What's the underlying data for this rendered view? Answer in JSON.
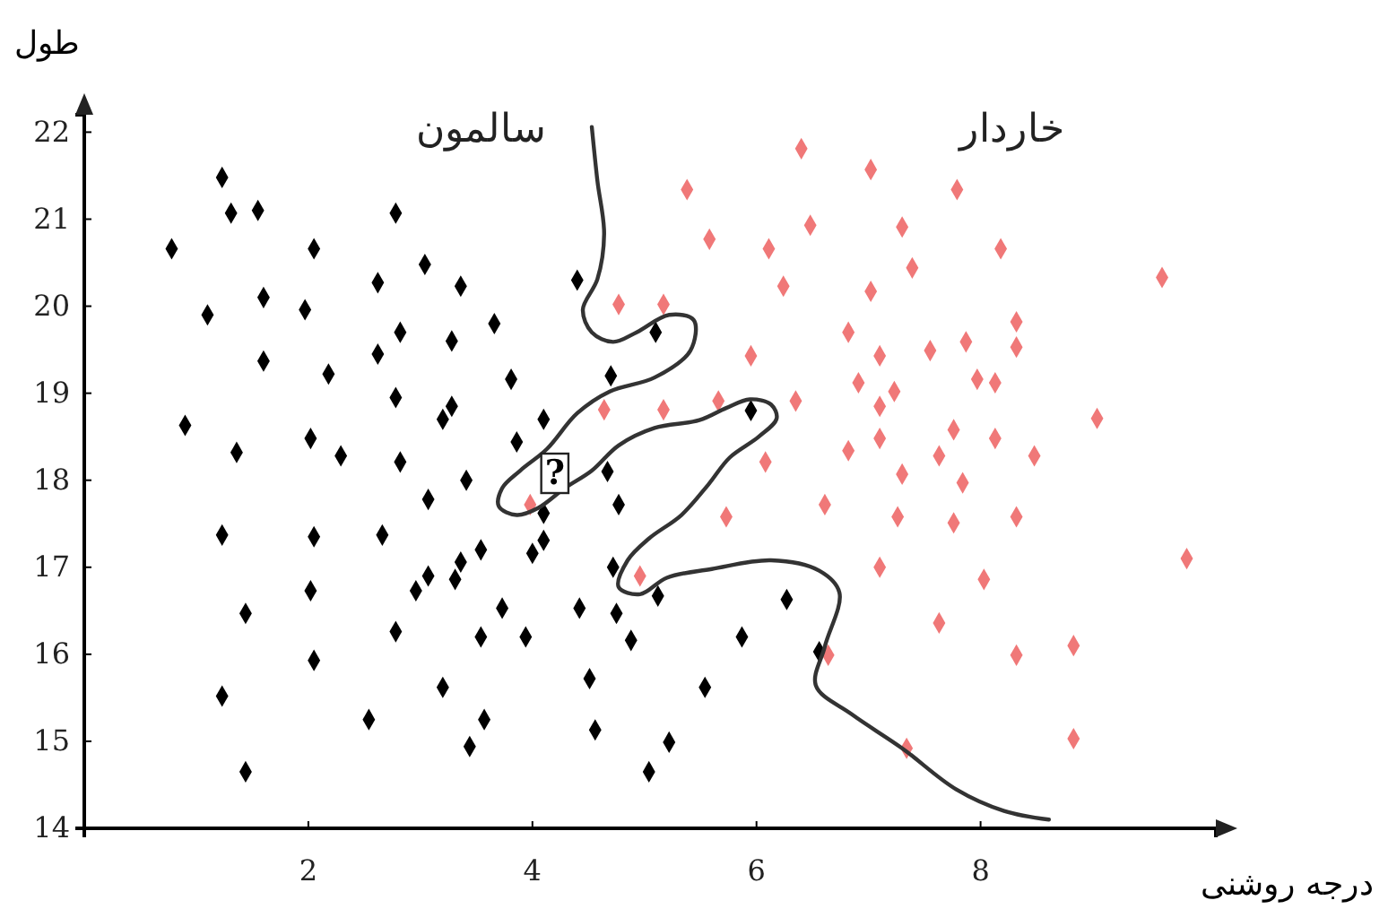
{
  "chart_data": {
    "type": "scatter",
    "xlabel": "درجه روشنی",
    "ylabel": "طول",
    "xlim": [
      0,
      10.1
    ],
    "ylim": [
      14,
      22.2
    ],
    "xticks": [
      2,
      4,
      6,
      8
    ],
    "yticks": [
      14,
      15,
      16,
      17,
      18,
      19,
      20,
      21,
      22
    ],
    "grid": false,
    "marker": "diamond",
    "annotations": [
      {
        "text": "?",
        "x": 4.2,
        "y": 18.1
      }
    ],
    "series": [
      {
        "name": "سالمون",
        "color": "#000000",
        "x": [
          1.23,
          1.31,
          1.55,
          2.78,
          0.78,
          2.05,
          3.04,
          2.62,
          3.36,
          1.1,
          1.6,
          1.97,
          2.82,
          3.28,
          3.66,
          1.6,
          2.18,
          2.62,
          3.81,
          2.78,
          3.28,
          3.2,
          0.9,
          1.36,
          2.02,
          2.29,
          2.82,
          3.86,
          3.41,
          3.07,
          1.23,
          2.05,
          2.66,
          3.54,
          3.36,
          3.07,
          3.31,
          2.96,
          2.02,
          1.44,
          3.73,
          2.78,
          3.54,
          3.94,
          4.0,
          2.05,
          3.2,
          1.23,
          2.54,
          3.57,
          3.44,
          1.44,
          4.4,
          5.1,
          4.7,
          4.1,
          5.95,
          4.67,
          4.1,
          4.77,
          4.1,
          4.72,
          5.12,
          6.27,
          4.42,
          4.75,
          4.88,
          5.87,
          6.56,
          4.51,
          5.54,
          4.56,
          5.22,
          5.04
        ],
        "values": [
          21.48,
          21.07,
          21.1,
          21.07,
          20.66,
          20.66,
          20.48,
          20.27,
          20.23,
          19.9,
          20.1,
          19.96,
          19.7,
          19.6,
          19.8,
          19.37,
          19.22,
          19.45,
          19.16,
          18.95,
          18.85,
          18.7,
          18.63,
          18.32,
          18.48,
          18.28,
          18.21,
          18.44,
          18.0,
          17.78,
          17.37,
          17.35,
          17.37,
          17.2,
          17.06,
          16.9,
          16.86,
          16.73,
          16.73,
          16.47,
          16.53,
          16.26,
          16.2,
          16.2,
          17.16,
          15.93,
          15.62,
          15.52,
          15.25,
          15.25,
          14.94,
          14.65,
          20.3,
          19.7,
          19.2,
          18.7,
          18.8,
          18.1,
          17.62,
          17.72,
          17.31,
          17.0,
          16.67,
          16.63,
          16.53,
          16.47,
          16.16,
          16.2,
          16.03,
          15.72,
          15.62,
          15.13,
          14.99,
          14.65
        ]
      },
      {
        "name": "خاردار",
        "color": "#f07878",
        "x": [
          6.4,
          5.38,
          6.48,
          5.58,
          6.11,
          6.24,
          4.77,
          5.17,
          6.82,
          5.95,
          6.91,
          4.64,
          5.17,
          5.66,
          6.35,
          6.82,
          6.08,
          3.98,
          5.73,
          6.61,
          4.96,
          6.64,
          7.02,
          7.79,
          7.3,
          8.18,
          7.39,
          7.02,
          9.62,
          8.32,
          8.32,
          7.1,
          7.55,
          7.87,
          7.23,
          7.97,
          8.13,
          7.1,
          9.04,
          7.76,
          7.1,
          8.13,
          7.63,
          8.48,
          7.3,
          7.84,
          7.26,
          7.76,
          8.32,
          9.84,
          7.1,
          8.03,
          7.63,
          8.32,
          8.83,
          7.34,
          8.83
        ],
        "values": [
          21.81,
          21.34,
          20.93,
          20.77,
          20.66,
          20.23,
          20.02,
          20.02,
          19.7,
          19.43,
          19.12,
          18.81,
          18.81,
          18.91,
          18.91,
          18.34,
          18.21,
          17.72,
          17.58,
          17.72,
          16.9,
          15.99,
          21.57,
          21.34,
          20.91,
          20.66,
          20.44,
          20.17,
          20.33,
          19.82,
          19.53,
          19.43,
          19.49,
          19.59,
          19.02,
          19.16,
          19.12,
          18.85,
          18.71,
          18.58,
          18.48,
          18.48,
          18.28,
          18.28,
          18.07,
          17.97,
          17.58,
          17.51,
          17.58,
          17.1,
          17.0,
          16.86,
          16.36,
          15.99,
          16.1,
          14.92,
          15.03
        ]
      },
      {
        "type": "line",
        "color": "#333333",
        "line_style": "solid",
        "marker": "none",
        "x": [
          4.53,
          4.58,
          4.64,
          4.58,
          4.45,
          4.53,
          4.72,
          4.93,
          5.22,
          5.44,
          5.41,
          5.09,
          4.69,
          4.4,
          4.13,
          3.89,
          3.73,
          3.7,
          3.86,
          4.05,
          4.29,
          4.53,
          4.77,
          5.09,
          5.49,
          5.73,
          5.94,
          6.13,
          6.18,
          6.02,
          5.76,
          5.57,
          5.33,
          5.04,
          4.85,
          4.77,
          4.96,
          5.2,
          5.6,
          6.13,
          6.56,
          6.74,
          6.61,
          6.53,
          6.85,
          7.3,
          7.78,
          8.21,
          8.61
        ],
        "values": [
          22.06,
          21.44,
          20.83,
          20.31,
          19.96,
          19.7,
          19.59,
          19.7,
          19.9,
          19.84,
          19.49,
          19.18,
          19.02,
          18.77,
          18.36,
          18.11,
          17.91,
          17.7,
          17.6,
          17.68,
          17.91,
          18.11,
          18.4,
          18.6,
          18.69,
          18.83,
          18.93,
          18.87,
          18.71,
          18.5,
          18.26,
          17.95,
          17.6,
          17.33,
          17.08,
          16.77,
          16.69,
          16.88,
          16.98,
          17.08,
          16.96,
          16.71,
          16.09,
          15.64,
          15.31,
          14.92,
          14.45,
          14.2,
          14.1
        ]
      }
    ]
  }
}
